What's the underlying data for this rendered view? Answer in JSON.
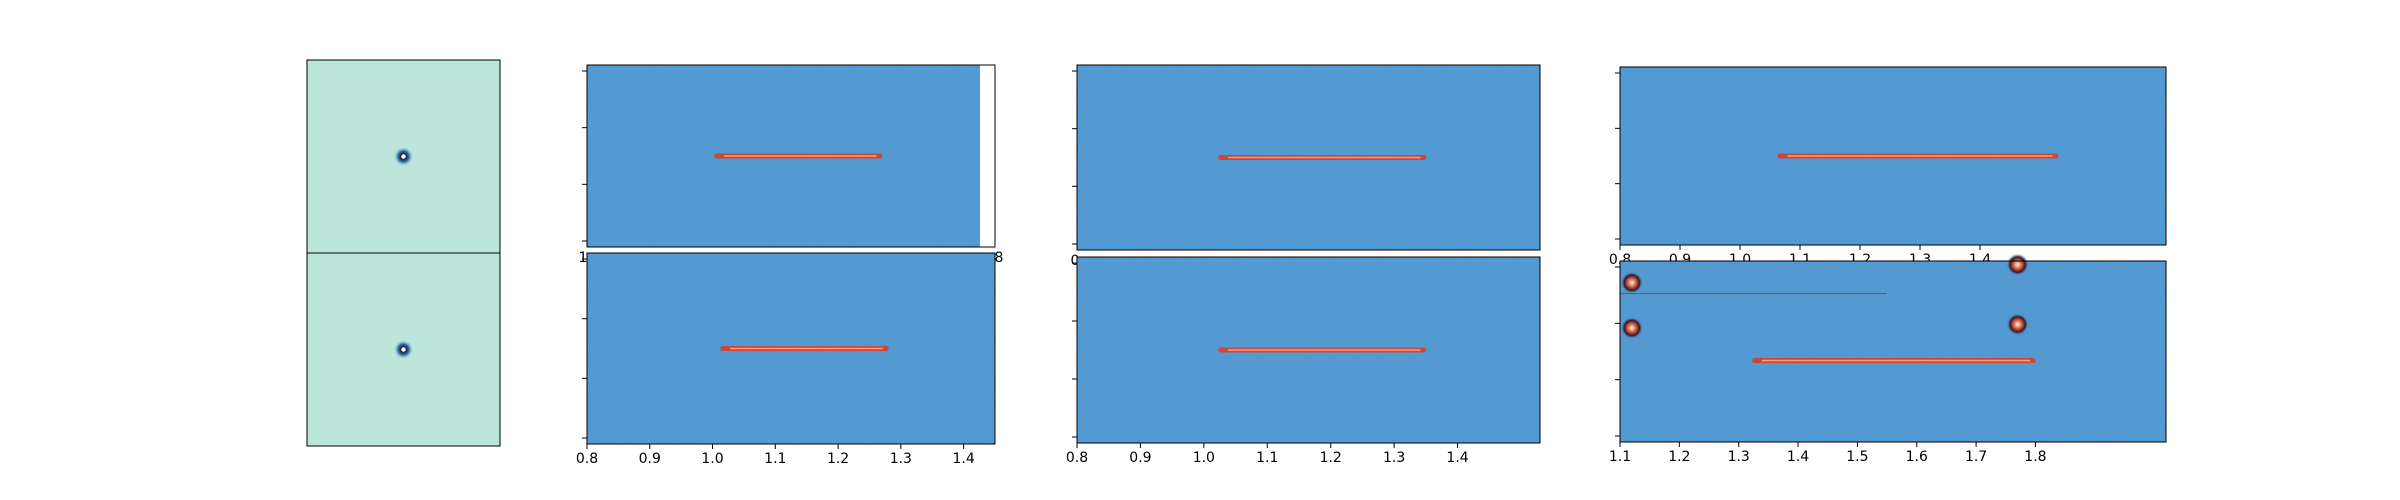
{
  "chart_data": [
    {
      "type": "image",
      "panel": "psf-top",
      "colormap": "teal-blue",
      "background_color": "#bde6da",
      "features": [
        {
          "kind": "point-source",
          "x": 0.5,
          "y": 0.5
        }
      ],
      "xticks": [],
      "yticks": [],
      "xlabel": "",
      "ylabel": ""
    },
    {
      "type": "image",
      "panel": "psf-bottom",
      "colormap": "teal-blue",
      "background_color": "#bde6da",
      "features": [
        {
          "kind": "point-source",
          "x": 0.5,
          "y": 0.5
        }
      ],
      "xticks": [],
      "yticks": [],
      "xlabel": "",
      "ylabel": ""
    },
    {
      "type": "image",
      "panel": "col1-top",
      "colormap": "icefire",
      "background_color": "#4b95cf",
      "xlim": [
        0.8,
        1.45
      ],
      "data_extent_x": [
        0.8,
        1.43
      ],
      "trace": {
        "x_start": 1.0,
        "x_end": 1.27,
        "y": 0.5
      },
      "xtick_labels_visible": [
        "1",
        "8"
      ],
      "ytick_count": 4,
      "xlabel": "",
      "ylabel": ""
    },
    {
      "type": "image",
      "panel": "col1-bottom",
      "colormap": "icefire",
      "background_color": "#4b95cf",
      "xlim": [
        0.8,
        1.45
      ],
      "trace": {
        "x_start": 1.01,
        "x_end": 1.28,
        "y": 0.5
      },
      "xticks": [
        0.8,
        0.9,
        1.0,
        1.1,
        1.2,
        1.3,
        1.4
      ],
      "xtick_labels": [
        "0.8",
        "0.9",
        "1.0",
        "1.1",
        "1.2",
        "1.3",
        "1.4"
      ],
      "ytick_count": 4,
      "xlabel": "",
      "ylabel": ""
    },
    {
      "type": "image",
      "panel": "col2-top",
      "colormap": "icefire",
      "background_color": "#4b95cf",
      "xlim": [
        0.8,
        1.53
      ],
      "trace": {
        "x_start": 1.02,
        "x_end": 1.35,
        "y": 0.5
      },
      "xtick_labels_visible": [
        "0"
      ],
      "ytick_count": 4,
      "xlabel": "",
      "ylabel": ""
    },
    {
      "type": "image",
      "panel": "col2-bottom",
      "colormap": "icefire",
      "background_color": "#4b95cf",
      "xlim": [
        0.8,
        1.53
      ],
      "trace": {
        "x_start": 1.02,
        "x_end": 1.35,
        "y": 0.5
      },
      "xticks": [
        0.8,
        0.9,
        1.0,
        1.1,
        1.2,
        1.3,
        1.4
      ],
      "xtick_labels": [
        "0.8",
        "0.9",
        "1.0",
        "1.1",
        "1.2",
        "1.3",
        "1.4"
      ],
      "ytick_count": 4,
      "xlabel": "",
      "ylabel": ""
    },
    {
      "type": "image",
      "panel": "col3-top",
      "colormap": "icefire",
      "background_color": "#4b95cf",
      "xlim": [
        0.8,
        1.71
      ],
      "trace": {
        "x_start": 1.06,
        "x_end": 1.53,
        "y": 0.5
      },
      "xticks": [
        0.8,
        0.9,
        1.0,
        1.1,
        1.2,
        1.3,
        1.4
      ],
      "xtick_labels": [
        "0.8",
        "0.9",
        "1.0",
        "1.1",
        "1.2",
        "1.3",
        "1.4"
      ],
      "xtick_labels_partially_hidden": true,
      "ytick_count": 4,
      "xlabel": "",
      "ylabel": ""
    },
    {
      "type": "image",
      "panel": "col3-bottom",
      "colormap": "icefire",
      "background_color": "#4b95cf",
      "xlim": [
        1.1,
        2.02
      ],
      "trace": {
        "x_start": 1.32,
        "x_end": 1.8,
        "y": 0.45
      },
      "features": [
        {
          "kind": "thin-trace",
          "x_start": 1.1,
          "x_end": 1.55,
          "y": 0.82
        },
        {
          "kind": "point-source",
          "x": 1.77,
          "y": 0.65
        },
        {
          "kind": "point-source",
          "x": 1.77,
          "y": 0.98
        },
        {
          "kind": "point-source",
          "x": 1.12,
          "y": 0.88
        },
        {
          "kind": "point-source",
          "x": 1.12,
          "y": 0.63
        }
      ],
      "xticks": [
        1.1,
        1.2,
        1.3,
        1.4,
        1.5,
        1.6,
        1.7,
        1.8
      ],
      "xtick_labels": [
        "1.1",
        "1.2",
        "1.3",
        "1.4",
        "1.5",
        "1.6",
        "1.7",
        "1.8"
      ],
      "ytick_count": 4,
      "xlabel": "",
      "ylabel": ""
    }
  ]
}
